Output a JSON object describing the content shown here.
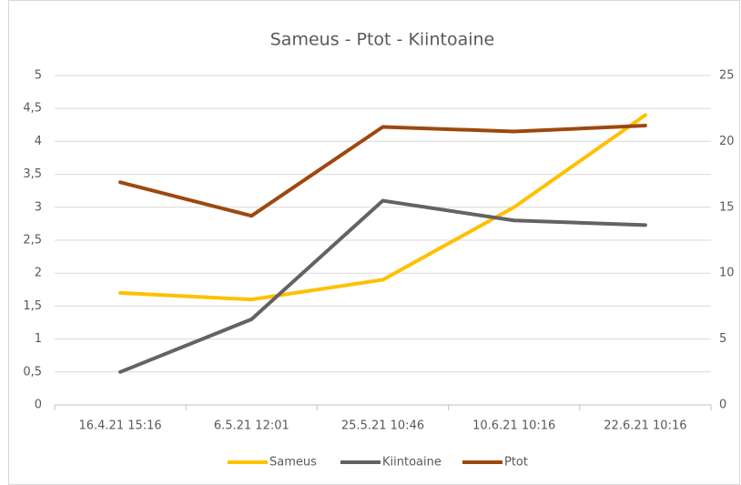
{
  "chart_data": {
    "type": "line",
    "title": "Sameus - Ptot - Kiintoaine",
    "categories": [
      "16.4.21 15:16",
      "6.5.21 12:01",
      "25.5.21 10:46",
      "10.6.21 10:16",
      "22.6.21 10:16"
    ],
    "series": [
      {
        "name": "Sameus",
        "color": "#ffc000",
        "values": [
          1.7,
          1.6,
          1.9,
          3.0,
          4.4
        ]
      },
      {
        "name": "Kiintoaine",
        "color": "#636363",
        "values": [
          0.5,
          1.3,
          3.1,
          2.8,
          2.73
        ]
      },
      {
        "name": "Ptot",
        "color": "#9e480e",
        "axis": "y2",
        "values": [
          16.9,
          14.35,
          21.1,
          20.75,
          21.2
        ]
      }
    ],
    "ylim": [
      0,
      5
    ],
    "yticks": [
      0,
      {
        "value": 0.5,
        "label": "0,5"
      },
      1,
      {
        "value": 1.5,
        "label": "1,5"
      },
      2,
      {
        "value": 2.5,
        "label": "2,5"
      },
      3,
      {
        "value": 3.5,
        "label": "3,5"
      },
      4,
      {
        "value": 4.5,
        "label": "4,5"
      },
      5
    ],
    "y2lim": [
      0,
      25
    ],
    "y2ticks": [
      0,
      5,
      10,
      15,
      20,
      25
    ],
    "grid": true
  }
}
